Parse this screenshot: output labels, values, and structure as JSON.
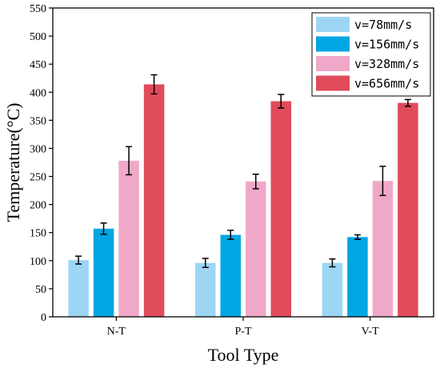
{
  "chart_data": {
    "type": "bar",
    "title": "",
    "xlabel": "Tool Type",
    "ylabel": "Temperature(°C)",
    "ylim": [
      0,
      550
    ],
    "yticks": [
      0,
      50,
      100,
      150,
      200,
      250,
      300,
      350,
      400,
      450,
      500,
      550
    ],
    "categories": [
      "N-T",
      "P-T",
      "V-T"
    ],
    "legend_position": "top-right",
    "grid": false,
    "error_bars": true,
    "series": [
      {
        "name": "v=78mm/s",
        "color": "#9DD6F5",
        "values": [
          101,
          96,
          96
        ],
        "errors": [
          7,
          8,
          7
        ]
      },
      {
        "name": "v=156mm/s",
        "color": "#00A6E3",
        "values": [
          157,
          146,
          142
        ],
        "errors": [
          10,
          8,
          4
        ]
      },
      {
        "name": "v=328mm/s",
        "color": "#F0A8C8",
        "values": [
          278,
          241,
          242
        ],
        "errors": [
          25,
          13,
          26
        ]
      },
      {
        "name": "v=656mm/s",
        "color": "#E04B5A",
        "values": [
          414,
          384,
          381
        ],
        "errors": [
          17,
          12,
          6
        ]
      }
    ]
  }
}
